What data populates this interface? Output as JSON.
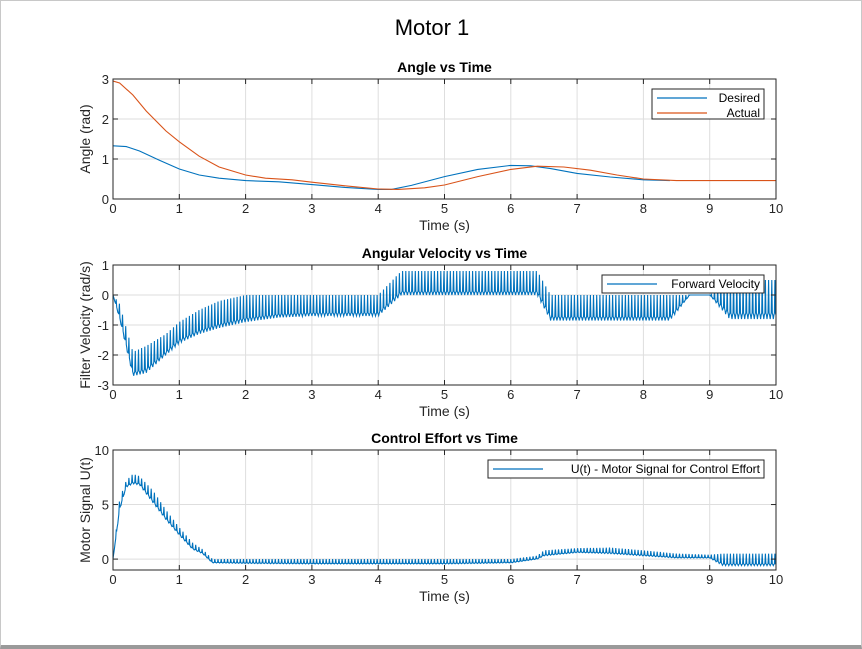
{
  "figure": {
    "title": "Motor 1"
  },
  "colors": {
    "blue": "#0072bd",
    "orange": "#d95319",
    "grid": "#dedede"
  },
  "chart_data": [
    {
      "type": "line",
      "title": "Angle vs Time",
      "xlabel": "Time (s)",
      "ylabel": "Angle (rad)",
      "xlim": [
        0,
        10
      ],
      "ylim": [
        0,
        3
      ],
      "xticks": [
        0,
        1,
        2,
        3,
        4,
        5,
        6,
        7,
        8,
        9,
        10
      ],
      "yticks": [
        0,
        1,
        2,
        3
      ],
      "grid": true,
      "legend": {
        "position": "top-right",
        "entries": [
          "Desired",
          "Actual"
        ]
      },
      "series": [
        {
          "name": "Desired",
          "color": "#0072bd",
          "x": [
            0,
            0.2,
            0.4,
            0.7,
            1.0,
            1.3,
            1.6,
            2.0,
            2.5,
            3.0,
            3.5,
            4.0,
            4.2,
            4.5,
            5.0,
            5.5,
            6.0,
            6.3,
            6.6,
            7.0,
            7.5,
            8.0,
            8.4
          ],
          "y": [
            1.33,
            1.31,
            1.2,
            0.97,
            0.75,
            0.6,
            0.52,
            0.46,
            0.43,
            0.36,
            0.29,
            0.24,
            0.24,
            0.34,
            0.56,
            0.74,
            0.84,
            0.83,
            0.76,
            0.64,
            0.55,
            0.48,
            0.46
          ]
        },
        {
          "name": "Actual",
          "color": "#d95319",
          "x": [
            0,
            0.1,
            0.3,
            0.5,
            0.8,
            1.0,
            1.3,
            1.6,
            2.0,
            2.3,
            2.7,
            3.0,
            3.5,
            4.0,
            4.3,
            4.7,
            5.0,
            5.5,
            6.0,
            6.4,
            6.8,
            7.2,
            7.6,
            8.0,
            8.5,
            9.0,
            10.0
          ],
          "y": [
            2.95,
            2.9,
            2.6,
            2.2,
            1.7,
            1.43,
            1.07,
            0.8,
            0.6,
            0.52,
            0.48,
            0.42,
            0.33,
            0.25,
            0.24,
            0.28,
            0.35,
            0.56,
            0.74,
            0.82,
            0.8,
            0.72,
            0.6,
            0.5,
            0.46,
            0.46,
            0.46
          ]
        }
      ]
    },
    {
      "type": "line",
      "title": "Angular Velocity vs Time",
      "xlabel": "Time (s)",
      "ylabel": "Filter Velocity (rad/s)",
      "xlim": [
        0,
        10
      ],
      "ylim": [
        -3,
        1
      ],
      "xticks": [
        0,
        1,
        2,
        3,
        4,
        5,
        6,
        7,
        8,
        9,
        10
      ],
      "yticks": [
        -3,
        -2,
        -1,
        0,
        1
      ],
      "grid": true,
      "legend": {
        "position": "top-right",
        "entries": [
          "Forward Velocity"
        ]
      },
      "series": [
        {
          "name": "Forward Velocity",
          "color": "#0072bd",
          "envelope_x": [
            0,
            0.1,
            0.3,
            0.5,
            0.8,
            1.0,
            1.3,
            1.6,
            2.0,
            2.5,
            3.0,
            3.5,
            4.0,
            4.35,
            4.6,
            5.0,
            5.5,
            6.0,
            6.4,
            6.6,
            7.0,
            7.5,
            8.0,
            8.4,
            8.7,
            9.0,
            9.3,
            9.6,
            10.0
          ],
          "envelope_low": [
            0,
            -0.8,
            -2.7,
            -2.6,
            -2.0,
            -1.6,
            -1.3,
            -1.1,
            -0.9,
            -0.75,
            -0.7,
            -0.7,
            -0.7,
            0,
            0,
            0,
            0,
            0,
            0,
            -0.85,
            -0.85,
            -0.85,
            -0.85,
            -0.85,
            0,
            0,
            -0.8,
            -0.8,
            -0.8
          ],
          "envelope_high": [
            0,
            -0.3,
            -1.9,
            -1.7,
            -1.3,
            -0.9,
            -0.5,
            -0.2,
            0,
            0,
            0,
            0,
            0,
            0.8,
            0.8,
            0.8,
            0.8,
            0.8,
            0.8,
            0,
            0,
            0,
            0,
            0,
            0,
            0,
            0.5,
            0.5,
            0.5
          ]
        }
      ]
    },
    {
      "type": "line",
      "title": "Control Effort vs Time",
      "xlabel": "Time (s)",
      "ylabel": "Motor Signal U(t)",
      "xlim": [
        0,
        10
      ],
      "ylim": [
        -1,
        10
      ],
      "xticks": [
        0,
        1,
        2,
        3,
        4,
        5,
        6,
        7,
        8,
        9,
        10
      ],
      "yticks": [
        0,
        5,
        10
      ],
      "grid": true,
      "legend": {
        "position": "top-right",
        "entries": [
          "U(t) - Motor Signal for Control Effort"
        ]
      },
      "series": [
        {
          "name": "U(t) - Motor Signal for Control Effort",
          "color": "#0072bd",
          "envelope_x": [
            0,
            0.1,
            0.2,
            0.3,
            0.4,
            0.6,
            0.8,
            1.0,
            1.2,
            1.35,
            1.5,
            2.0,
            3.0,
            4.0,
            5.0,
            6.0,
            6.4,
            6.5,
            7.0,
            7.5,
            8.0,
            8.5,
            9.0,
            9.2,
            10.0
          ],
          "envelope_low": [
            0,
            4.5,
            6.6,
            6.9,
            6.8,
            5.2,
            3.6,
            2.2,
            0.9,
            0.5,
            -0.35,
            -0.4,
            -0.45,
            -0.45,
            -0.45,
            -0.35,
            0,
            0.3,
            0.6,
            0.5,
            0.3,
            0.1,
            0.1,
            -0.6,
            -0.6
          ],
          "envelope_high": [
            0,
            5.5,
            7.2,
            7.8,
            7.6,
            6.3,
            4.5,
            2.9,
            1.5,
            0.9,
            0,
            0,
            0,
            0,
            0,
            0,
            0.3,
            0.8,
            1.0,
            1.05,
            0.8,
            0.5,
            0.4,
            0.5,
            0.5
          ]
        }
      ]
    }
  ]
}
